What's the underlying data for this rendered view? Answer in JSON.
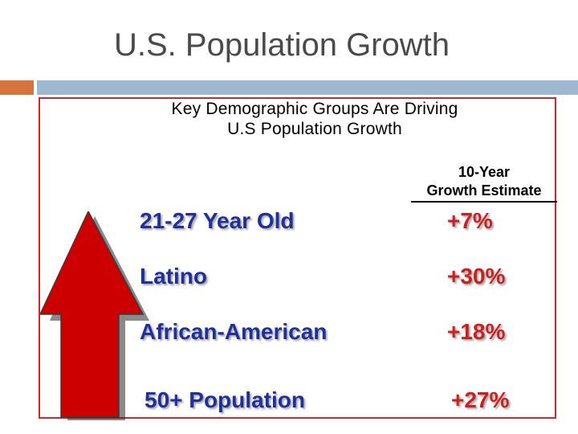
{
  "slide": {
    "title": "U.S. Population Growth"
  },
  "panel": {
    "title_line1": "Key Demographic Groups Are Driving",
    "title_line2": "U.S Population Growth",
    "column_header_line1": "10-Year",
    "column_header_line2": "Growth Estimate"
  },
  "rows": [
    {
      "label": "21-27 Year Old",
      "value": "+7%"
    },
    {
      "label": "Latino",
      "value": "+30%"
    },
    {
      "label": "African-American",
      "value": "+18%"
    },
    {
      "label": "50+ Population",
      "value": "+27%"
    }
  ],
  "colors": {
    "label": "#1f2f9c",
    "value": "#cc1f1f",
    "arrow": "#cc0000",
    "accent_orange": "#d7743c",
    "accent_blue": "#9fb8d2"
  },
  "icons": {
    "arrow": "up-arrow-icon"
  }
}
